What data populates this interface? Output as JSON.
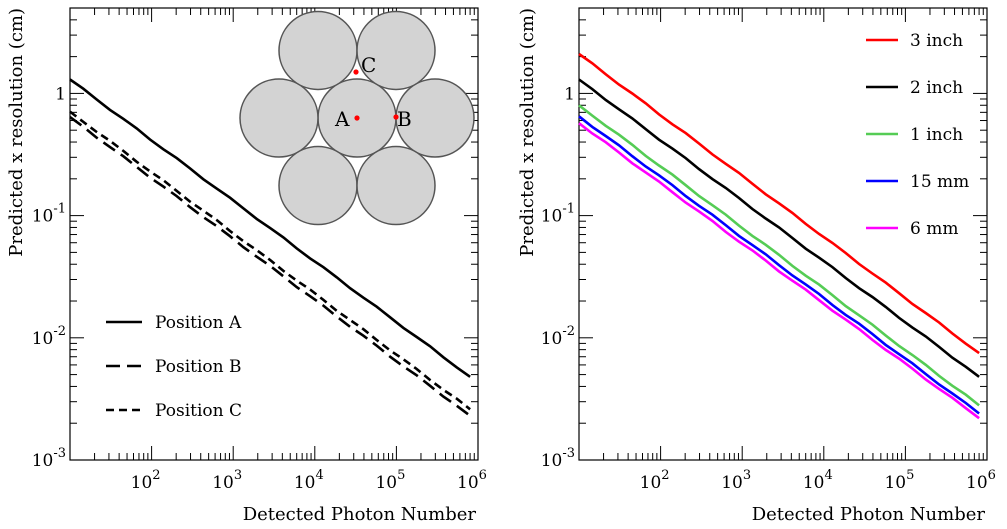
{
  "chart_data": [
    {
      "type": "line",
      "xlabel": "Detected Photon Number",
      "ylabel": "Predicted x resolution (cm)",
      "xscale": "log",
      "yscale": "log",
      "xlim": [
        10,
        1000000
      ],
      "ylim": [
        0.001,
        5
      ],
      "x_tick_labels": [
        {
          "value": 100,
          "base": "10",
          "exp": "2"
        },
        {
          "value": 1000,
          "base": "10",
          "exp": "3"
        },
        {
          "value": 10000,
          "base": "10",
          "exp": "4"
        },
        {
          "value": 100000,
          "base": "10",
          "exp": "5"
        },
        {
          "value": 1000000,
          "base": "10",
          "exp": "6"
        }
      ],
      "y_tick_labels": [
        {
          "value": 1,
          "base": "1",
          "exp": ""
        },
        {
          "value": 0.1,
          "base": "10",
          "exp": "-1"
        },
        {
          "value": 0.01,
          "base": "10",
          "exp": "-2"
        },
        {
          "value": 0.001,
          "base": "10",
          "exp": "-3"
        }
      ],
      "legend_position": "bottom-left",
      "series": [
        {
          "name": "Position A",
          "dash": "solid",
          "color": "#000000",
          "x_start": 10,
          "y_start": 1.3,
          "x_end": 800000,
          "y_end": 0.0048
        },
        {
          "name": "Position B",
          "dash": "long-dash",
          "color": "#000000",
          "x_start": 10,
          "y_start": 0.64,
          "x_end": 800000,
          "y_end": 0.0023
        },
        {
          "name": "Position C",
          "dash": "short-dash",
          "color": "#000000",
          "x_start": 10,
          "y_start": 0.71,
          "x_end": 800000,
          "y_end": 0.0026
        }
      ],
      "inset": {
        "description_points": [
          {
            "label": "A",
            "marker_color": "#ff0000"
          },
          {
            "label": "B",
            "marker_color": "#ff0000"
          },
          {
            "label": "C",
            "marker_color": "#ff0000"
          }
        ],
        "circle_fill": "#d3d3d3",
        "circle_stroke": "#555555"
      }
    },
    {
      "type": "line",
      "xlabel": "Detected Photon Number",
      "ylabel": "Predicted x resolution (cm)",
      "xscale": "log",
      "yscale": "log",
      "xlim": [
        10,
        1000000
      ],
      "ylim": [
        0.001,
        5
      ],
      "x_tick_labels": [
        {
          "value": 100,
          "base": "10",
          "exp": "2"
        },
        {
          "value": 1000,
          "base": "10",
          "exp": "3"
        },
        {
          "value": 10000,
          "base": "10",
          "exp": "4"
        },
        {
          "value": 100000,
          "base": "10",
          "exp": "5"
        },
        {
          "value": 1000000,
          "base": "10",
          "exp": "6"
        }
      ],
      "y_tick_labels": [
        {
          "value": 1,
          "base": "1",
          "exp": ""
        },
        {
          "value": 0.1,
          "base": "10",
          "exp": "-1"
        },
        {
          "value": 0.01,
          "base": "10",
          "exp": "-2"
        },
        {
          "value": 0.001,
          "base": "10",
          "exp": "-3"
        }
      ],
      "legend_position": "top-right",
      "series": [
        {
          "name": "3 inch",
          "color": "#ff0000",
          "x_start": 10,
          "y_start": 2.1,
          "x_end": 800000,
          "y_end": 0.0075
        },
        {
          "name": "2 inch",
          "color": "#000000",
          "x_start": 10,
          "y_start": 1.3,
          "x_end": 800000,
          "y_end": 0.0048
        },
        {
          "name": "1 inch",
          "color": "#55cc55",
          "x_start": 10,
          "y_start": 0.8,
          "x_end": 800000,
          "y_end": 0.0028
        },
        {
          "name": "15 mm",
          "color": "#0000ff",
          "x_start": 10,
          "y_start": 0.65,
          "x_end": 800000,
          "y_end": 0.0024
        },
        {
          "name": "6 mm",
          "color": "#ff00ff",
          "x_start": 10,
          "y_start": 0.57,
          "x_end": 800000,
          "y_end": 0.0022
        }
      ]
    }
  ]
}
